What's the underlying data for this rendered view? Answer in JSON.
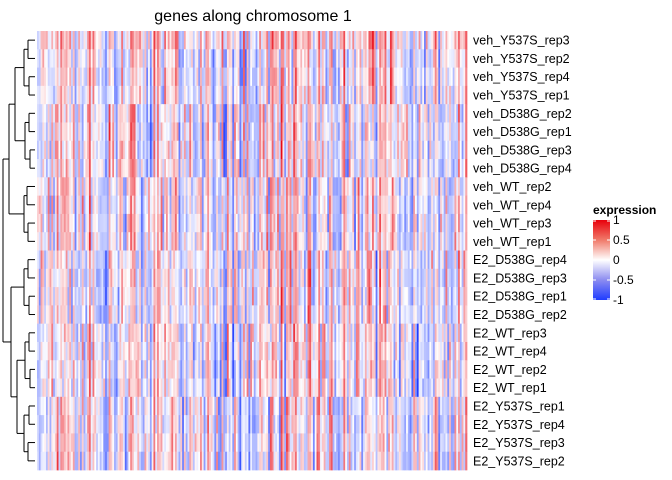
{
  "chart_data": {
    "type": "heatmap",
    "title": "genes along chromosome 1",
    "rows": [
      "veh_Y537S_rep3",
      "veh_Y537S_rep2",
      "veh_Y537S_rep4",
      "veh_Y537S_rep1",
      "veh_D538G_rep2",
      "veh_D538G_rep1",
      "veh_D538G_rep3",
      "veh_D538G_rep4",
      "veh_WT_rep2",
      "veh_WT_rep4",
      "veh_WT_rep3",
      "veh_WT_rep1",
      "E2_D538G_rep4",
      "E2_D538G_rep3",
      "E2_D538G_rep1",
      "E2_D538G_rep2",
      "E2_WT_rep3",
      "E2_WT_rep4",
      "E2_WT_rep2",
      "E2_WT_rep1",
      "E2_Y537S_rep1",
      "E2_Y537S_rep4",
      "E2_Y537S_rep3",
      "E2_Y537S_rep2"
    ],
    "groups": [
      {
        "name": "veh_Y537S",
        "rows": [
          0,
          3
        ]
      },
      {
        "name": "veh_D538G",
        "rows": [
          4,
          7
        ]
      },
      {
        "name": "veh_WT",
        "rows": [
          8,
          11
        ]
      },
      {
        "name": "E2_D538G",
        "rows": [
          12,
          15
        ]
      },
      {
        "name": "E2_WT",
        "rows": [
          16,
          19
        ]
      },
      {
        "name": "E2_Y537S",
        "rows": [
          20,
          23
        ]
      }
    ],
    "n_columns": 240,
    "column_labels_shown": false,
    "row_dendrogram": true,
    "color_scale": {
      "name": "expression",
      "range": [
        -1,
        1
      ],
      "ticks": [
        1,
        0.5,
        0,
        -0.5,
        -1
      ],
      "tick_labels": [
        "1",
        "0.5",
        "0",
        "-0.5",
        "-1"
      ],
      "low_color": "#1f3cff",
      "mid_color": "#ffffff",
      "high_color": "#e8000b"
    },
    "values_note": "cell values span -1 to 1; individual cell values are not labeled in the figure"
  }
}
